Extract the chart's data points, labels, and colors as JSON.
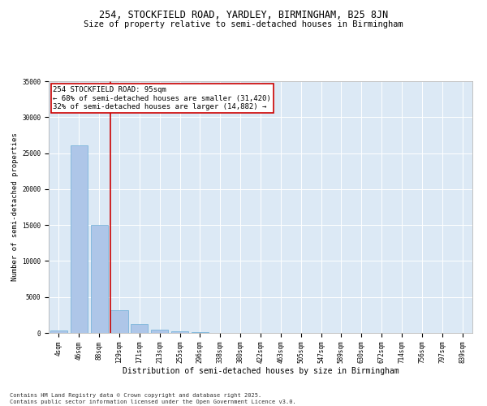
{
  "title": "254, STOCKFIELD ROAD, YARDLEY, BIRMINGHAM, B25 8JN",
  "subtitle": "Size of property relative to semi-detached houses in Birmingham",
  "xlabel": "Distribution of semi-detached houses by size in Birmingham",
  "ylabel": "Number of semi-detached properties",
  "categories": [
    "4sqm",
    "46sqm",
    "88sqm",
    "129sqm",
    "171sqm",
    "213sqm",
    "255sqm",
    "296sqm",
    "338sqm",
    "380sqm",
    "422sqm",
    "463sqm",
    "505sqm",
    "547sqm",
    "589sqm",
    "630sqm",
    "672sqm",
    "714sqm",
    "756sqm",
    "797sqm",
    "839sqm"
  ],
  "values": [
    300,
    26100,
    15050,
    3200,
    1200,
    420,
    200,
    60,
    10,
    5,
    2,
    1,
    1,
    0,
    0,
    0,
    0,
    0,
    0,
    0,
    0
  ],
  "bar_color": "#aec6e8",
  "bar_edge_color": "#6baed6",
  "vline_x_index": 2.57,
  "vline_color": "#cc0000",
  "annotation_text": "254 STOCKFIELD ROAD: 95sqm\n← 68% of semi-detached houses are smaller (31,420)\n32% of semi-detached houses are larger (14,882) →",
  "annotation_box_color": "#ffffff",
  "annotation_box_edge_color": "#cc0000",
  "ylim": [
    0,
    35000
  ],
  "yticks": [
    0,
    5000,
    10000,
    15000,
    20000,
    25000,
    30000,
    35000
  ],
  "background_color": "#dce9f5",
  "footer_text": "Contains HM Land Registry data © Crown copyright and database right 2025.\nContains public sector information licensed under the Open Government Licence v3.0.",
  "title_fontsize": 8.5,
  "subtitle_fontsize": 7.5,
  "xlabel_fontsize": 7,
  "ylabel_fontsize": 6.5,
  "tick_fontsize": 5.5,
  "annotation_fontsize": 6.5,
  "footer_fontsize": 5.0
}
